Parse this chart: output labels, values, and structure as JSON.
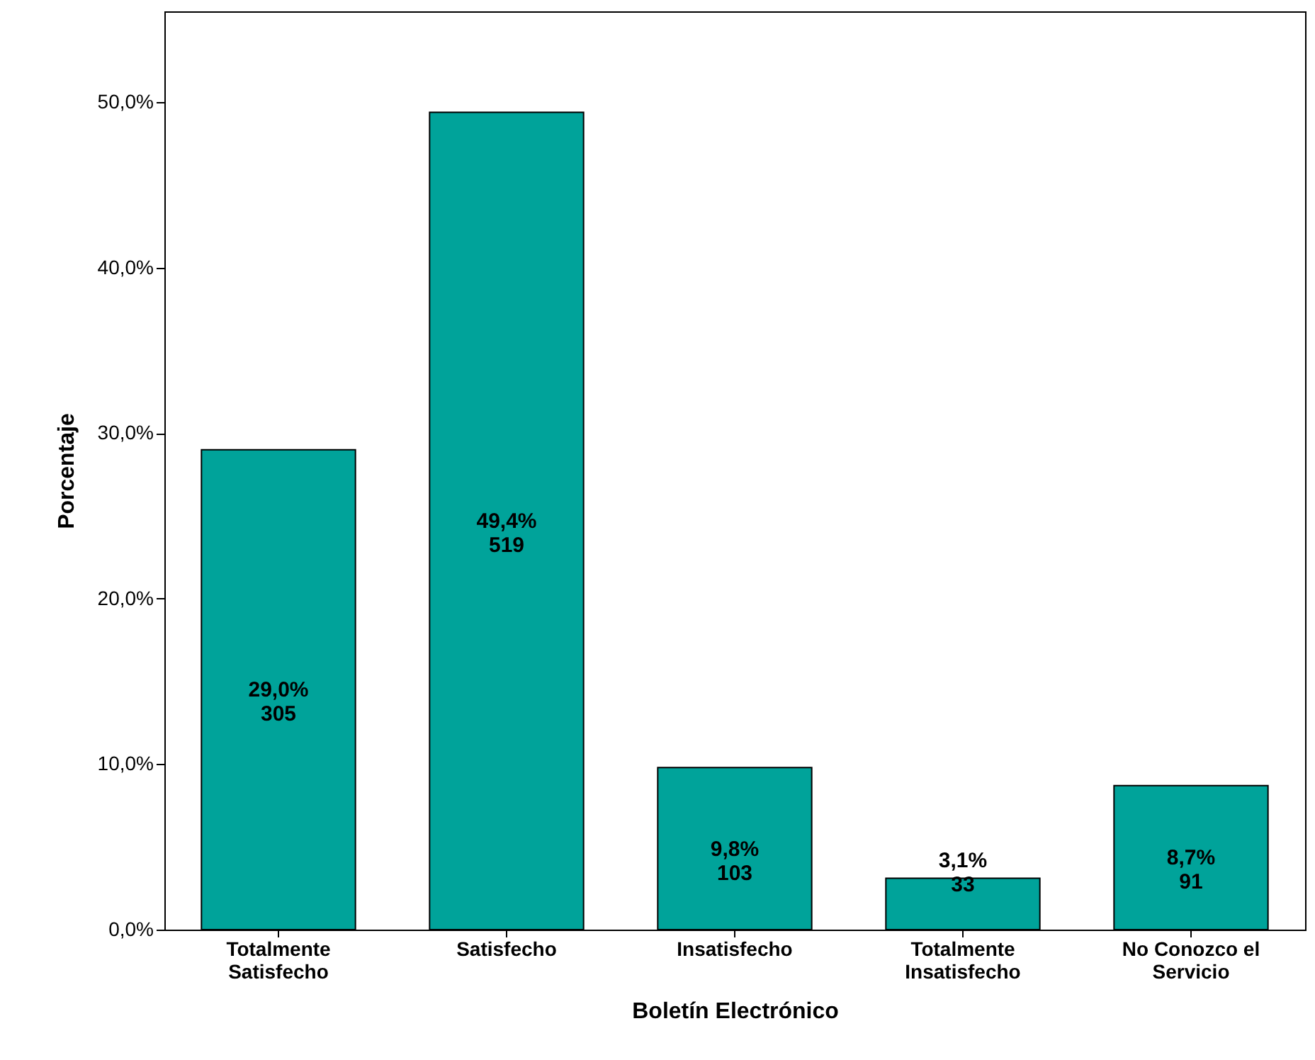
{
  "chart_data": {
    "type": "bar",
    "xlabel": "Boletín Electrónico",
    "ylabel": "Porcentaje",
    "categories": [
      "Totalmente Satisfecho",
      "Satisfecho",
      "Insatisfecho",
      "Totalmente Insatisfecho",
      "No Conozco el Servicio"
    ],
    "values": [
      29.0,
      49.4,
      9.8,
      3.1,
      8.7
    ],
    "color": "#00a39a",
    "value_labels": [
      "29,0%\n305",
      "49,4%\n519",
      "9,8%\n103",
      "3,1%\n33",
      "8,7%\n91"
    ],
    "ylim": [
      0,
      55.5
    ],
    "yticks": [
      {
        "value": 0,
        "label": "0,0%"
      },
      {
        "value": 10,
        "label": "10,0%"
      },
      {
        "value": 20,
        "label": "20,0%"
      },
      {
        "value": 30,
        "label": "30,0%"
      },
      {
        "value": 40,
        "label": "40,0%"
      },
      {
        "value": 50,
        "label": "50,0%"
      }
    ],
    "grid": false
  }
}
